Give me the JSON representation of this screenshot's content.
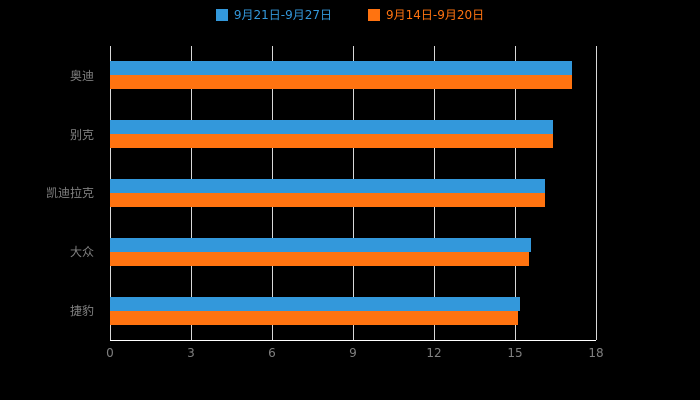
{
  "legend": [
    {
      "label": "9月21日-9月27日",
      "color": "#3398db"
    },
    {
      "label": "9月14日-9月20日",
      "color": "#ff7310"
    }
  ],
  "chart_data": {
    "type": "bar",
    "orientation": "horizontal",
    "title": "",
    "xlabel": "",
    "ylabel": "",
    "categories": [
      "奥迪",
      "别克",
      "凯迪拉克",
      "大众",
      "捷豹"
    ],
    "series": [
      {
        "name": "9月21日-9月27日",
        "color": "#3398db",
        "values": [
          17.1,
          16.4,
          16.1,
          15.6,
          15.2
        ]
      },
      {
        "name": "9月14日-9月20日",
        "color": "#ff7310",
        "values": [
          17.1,
          16.4,
          16.1,
          15.5,
          15.1
        ]
      }
    ],
    "xlim": [
      0,
      18
    ],
    "xticks": [
      0,
      3,
      6,
      9,
      12,
      15,
      18
    ],
    "grid": true,
    "legend_position": "top"
  },
  "colors": {
    "background": "#000000",
    "gridline": "#d9d9d9",
    "axis_line": "#ffffff",
    "tick_label": "#808080",
    "category_label": "#808080"
  }
}
